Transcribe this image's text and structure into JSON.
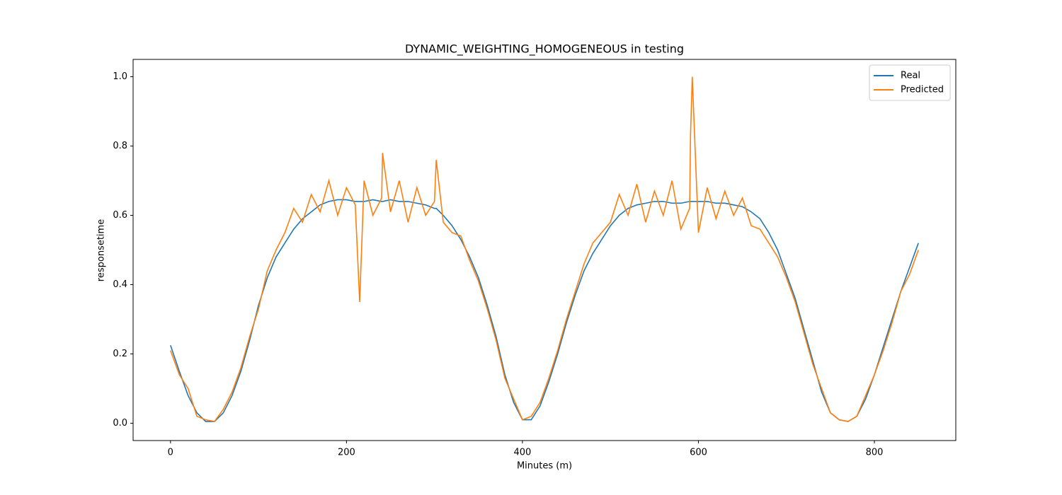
{
  "chart_data": {
    "type": "line",
    "title": "DYNAMIC_WEIGHTING_HOMOGENEOUS in testing",
    "x_label": "Minutes (m)",
    "y_label": "responsetime",
    "x": [
      0,
      10,
      20,
      30,
      40,
      50,
      60,
      70,
      80,
      90,
      100,
      110,
      120,
      130,
      140,
      150,
      160,
      170,
      180,
      190,
      200,
      210,
      215,
      220,
      230,
      240,
      241,
      250,
      260,
      270,
      280,
      290,
      300,
      302,
      310,
      320,
      330,
      340,
      350,
      360,
      370,
      380,
      390,
      400,
      410,
      420,
      430,
      440,
      450,
      460,
      470,
      480,
      490,
      500,
      510,
      520,
      530,
      540,
      550,
      560,
      570,
      580,
      590,
      591,
      593,
      600,
      610,
      620,
      630,
      640,
      650,
      660,
      670,
      680,
      690,
      700,
      710,
      720,
      730,
      740,
      750,
      760,
      770,
      780,
      790,
      800,
      810,
      820,
      830,
      840,
      850
    ],
    "series": [
      {
        "name": "Real",
        "color": "#1f77b4",
        "values": [
          0.225,
          0.15,
          0.08,
          0.03,
          0.005,
          0.005,
          0.03,
          0.08,
          0.15,
          0.24,
          0.34,
          0.42,
          0.48,
          0.52,
          0.56,
          0.59,
          0.61,
          0.63,
          0.64,
          0.645,
          0.645,
          0.64,
          0.64,
          0.64,
          0.645,
          0.64,
          0.64,
          0.645,
          0.64,
          0.64,
          0.635,
          0.63,
          0.62,
          0.62,
          0.6,
          0.57,
          0.53,
          0.48,
          0.42,
          0.34,
          0.25,
          0.14,
          0.06,
          0.01,
          0.01,
          0.05,
          0.12,
          0.2,
          0.29,
          0.37,
          0.44,
          0.49,
          0.53,
          0.57,
          0.6,
          0.62,
          0.63,
          0.635,
          0.64,
          0.64,
          0.635,
          0.635,
          0.64,
          0.64,
          0.64,
          0.64,
          0.64,
          0.635,
          0.635,
          0.63,
          0.625,
          0.61,
          0.59,
          0.55,
          0.5,
          0.43,
          0.36,
          0.27,
          0.18,
          0.09,
          0.03,
          0.01,
          0.005,
          0.02,
          0.07,
          0.14,
          0.22,
          0.3,
          0.38,
          0.45,
          0.52
        ]
      },
      {
        "name": "Predicted",
        "color": "#ff7f0e",
        "values": [
          0.21,
          0.14,
          0.1,
          0.02,
          0.01,
          0.005,
          0.04,
          0.09,
          0.16,
          0.25,
          0.33,
          0.44,
          0.5,
          0.55,
          0.62,
          0.58,
          0.66,
          0.61,
          0.7,
          0.6,
          0.68,
          0.63,
          0.35,
          0.7,
          0.6,
          0.65,
          0.78,
          0.61,
          0.7,
          0.58,
          0.68,
          0.6,
          0.64,
          0.76,
          0.58,
          0.55,
          0.54,
          0.47,
          0.41,
          0.33,
          0.24,
          0.13,
          0.07,
          0.01,
          0.02,
          0.06,
          0.13,
          0.21,
          0.3,
          0.38,
          0.46,
          0.52,
          0.55,
          0.58,
          0.66,
          0.6,
          0.69,
          0.58,
          0.67,
          0.6,
          0.7,
          0.56,
          0.62,
          0.83,
          1.0,
          0.55,
          0.68,
          0.59,
          0.67,
          0.6,
          0.65,
          0.57,
          0.56,
          0.52,
          0.48,
          0.42,
          0.35,
          0.26,
          0.17,
          0.1,
          0.03,
          0.01,
          0.005,
          0.02,
          0.08,
          0.14,
          0.21,
          0.29,
          0.38,
          0.43,
          0.5
        ]
      }
    ],
    "xlim": [
      -42.5,
      892.5
    ],
    "ylim": [
      -0.05,
      1.05
    ],
    "xticks": [
      0,
      200,
      400,
      600,
      800
    ],
    "yticks": [
      {
        "value": 0,
        "label": "0.0"
      },
      {
        "value": 0.2,
        "label": "0.2"
      },
      {
        "value": 0.4,
        "label": "0.4"
      },
      {
        "value": 0.6,
        "label": "0.6"
      },
      {
        "value": 0.8,
        "label": "0.8"
      },
      {
        "value": 1,
        "label": "1.0"
      }
    ],
    "legend": "upper right"
  }
}
